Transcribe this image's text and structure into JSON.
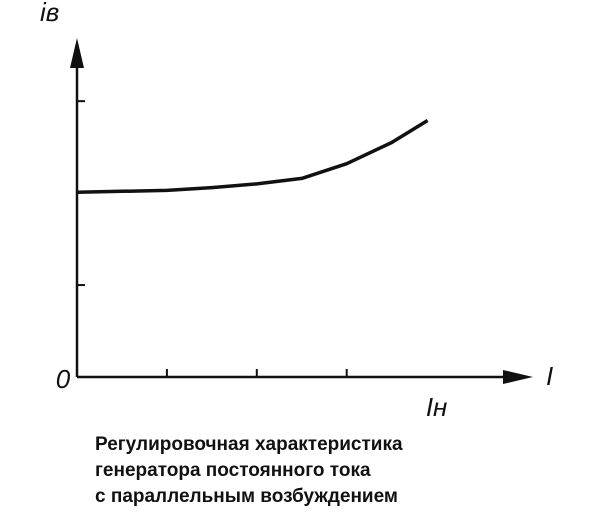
{
  "chart_data": {
    "type": "line",
    "title": [
      "Регулировочная характеристика",
      "генератора постоянного тока",
      "с параллельным возбуждением"
    ],
    "y_label": "iв",
    "x_label": "I",
    "x": [
      0,
      0.5,
      1,
      1.5,
      2,
      2.5,
      3,
      3.5,
      3.9
    ],
    "values": [
      2.01,
      2.02,
      2.03,
      2.06,
      2.1,
      2.16,
      2.32,
      2.55,
      2.79
    ],
    "color": "#111111",
    "xlim": [
      0,
      5.05
    ],
    "ylim": [
      0,
      3.6
    ],
    "xticks": [
      0,
      {
        "value": 1,
        "label": null
      },
      {
        "value": 2,
        "label": null
      },
      {
        "value": 3,
        "label": null
      },
      {
        "value": 4,
        "label": "Iн"
      }
    ],
    "yticks": [
      {
        "value": 1,
        "label": null
      },
      {
        "value": 3,
        "label": null
      }
    ]
  }
}
